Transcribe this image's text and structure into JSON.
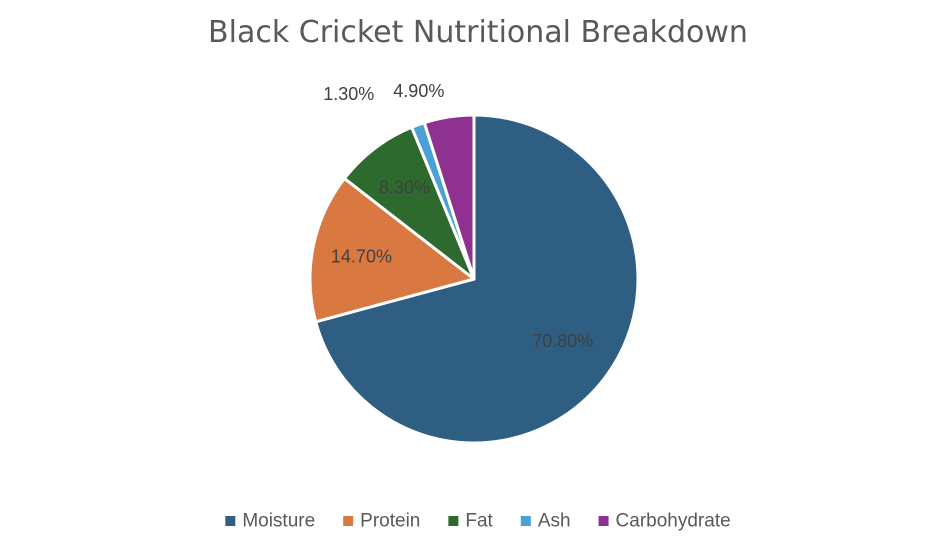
{
  "chart_data": {
    "type": "pie",
    "title": "Black Cricket Nutritional Breakdown",
    "categories": [
      "Moisture",
      "Protein",
      "Fat",
      "Ash",
      "Carbohydrate"
    ],
    "values": [
      70.8,
      14.7,
      8.3,
      1.3,
      4.9
    ],
    "data_labels": [
      "70.80%",
      "14.70%",
      "8.30%",
      "1.30%",
      "4.90%"
    ],
    "colors": [
      "#2E5F82",
      "#D97941",
      "#2E6A2E",
      "#4BA0D6",
      "#8E3191"
    ],
    "start_angle_deg": 0,
    "direction": "clockwise",
    "legend_position": "bottom",
    "grid": false
  }
}
